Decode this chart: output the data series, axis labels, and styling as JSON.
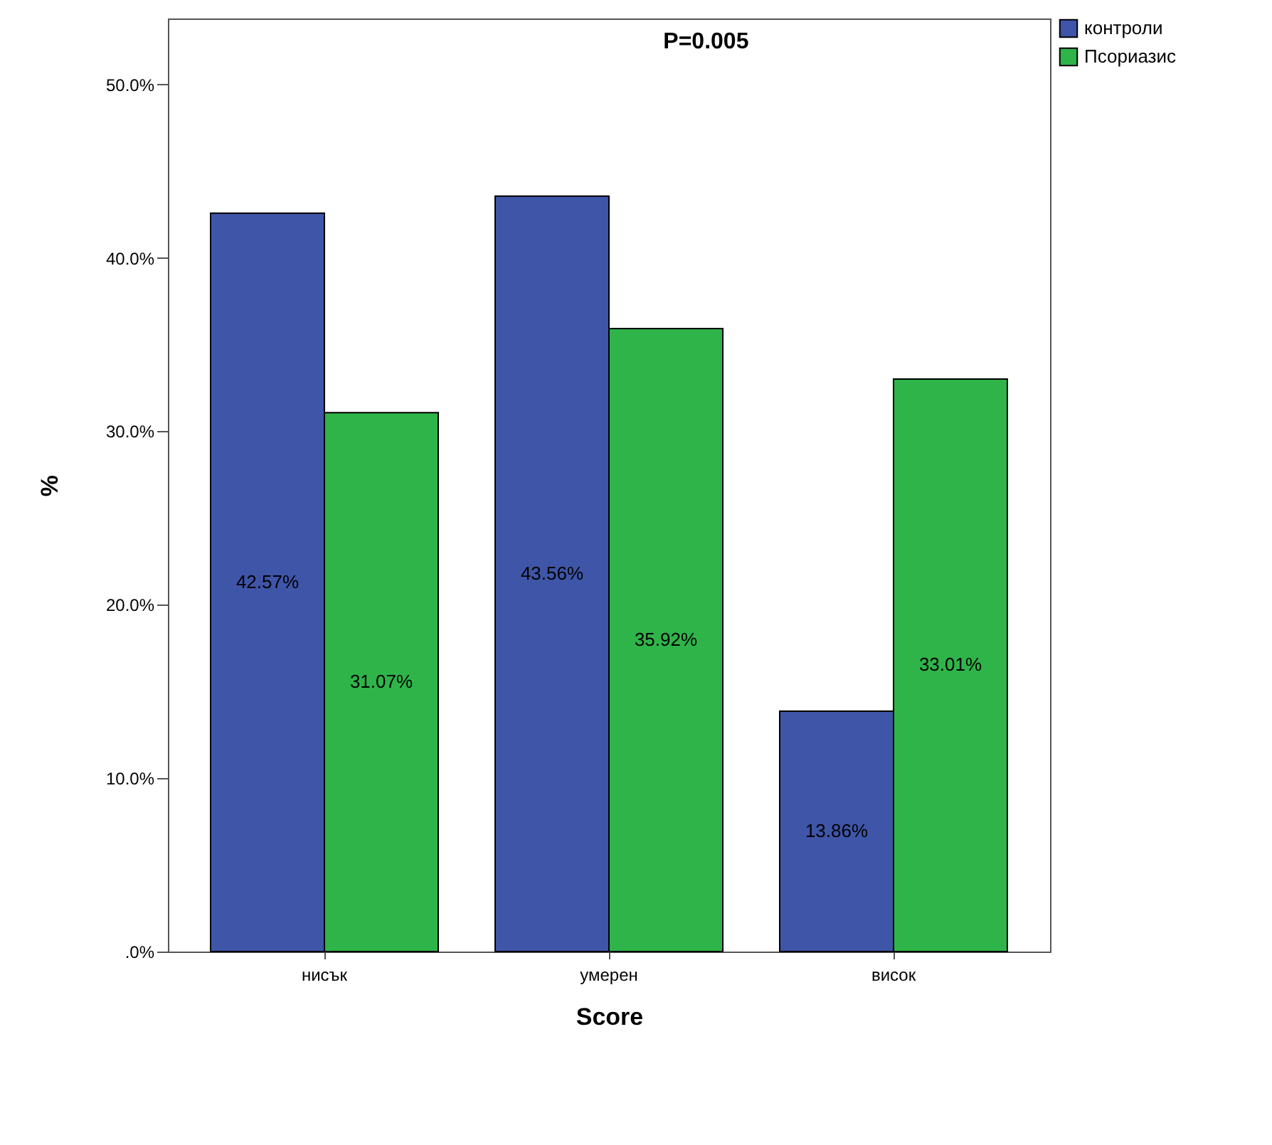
{
  "chart_data": {
    "type": "bar",
    "xlabel": "Score",
    "ylabel": "%",
    "annotations": [
      "P=0.005"
    ],
    "categories": [
      "нисък",
      "умерен",
      "висок"
    ],
    "series": [
      {
        "name": "контроли",
        "color": "#3f55a8",
        "values": [
          42.57,
          43.56,
          13.86
        ],
        "value_labels": [
          "42.57%",
          "43.56%",
          "13.86%"
        ]
      },
      {
        "name": "Псориазис",
        "color": "#2fb449",
        "values": [
          31.07,
          35.92,
          33.01
        ],
        "value_labels": [
          "31.07%",
          "35.92%",
          "33.01%"
        ]
      }
    ],
    "ylim": [
      0,
      53.8
    ],
    "yticks": [
      {
        "value": 0,
        "label": ".0%"
      },
      {
        "value": 10,
        "label": "10.0%"
      },
      {
        "value": 20,
        "label": "20.0%"
      },
      {
        "value": 30,
        "label": "30.0%"
      },
      {
        "value": 40,
        "label": "40.0%"
      },
      {
        "value": 50,
        "label": "50.0%"
      }
    ],
    "grid": false,
    "legend": "top right"
  }
}
